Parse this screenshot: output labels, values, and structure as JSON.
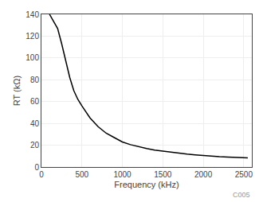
{
  "chart_data": {
    "type": "line",
    "x_label": "Frequency (kHz)",
    "y_label": "RT (kΩ)",
    "x": [
      100,
      150,
      200,
      250,
      300,
      350,
      400,
      450,
      500,
      600,
      700,
      800,
      900,
      1000,
      1100,
      1200,
      1300,
      1400,
      1500,
      1600,
      1700,
      1800,
      1900,
      2000,
      2100,
      2200,
      2300,
      2400,
      2500,
      2550
    ],
    "values": [
      140,
      133,
      127,
      113,
      97,
      82,
      70,
      62,
      56,
      45,
      37,
      31,
      27,
      23,
      20.5,
      18.5,
      17,
      15.5,
      14.5,
      13.5,
      12.5,
      11.8,
      11.2,
      10.5,
      10.0,
      9.5,
      9.1,
      8.8,
      8.5,
      8.3
    ],
    "color": "#000000",
    "xlim": [
      0,
      2600
    ],
    "ylim": [
      0,
      140
    ],
    "xticks": [
      0,
      500,
      1000,
      1500,
      2000,
      2500
    ],
    "yticks": [
      0,
      20,
      40,
      60,
      80,
      100,
      120,
      140
    ],
    "grid": true,
    "annotations": [
      "C005"
    ]
  }
}
